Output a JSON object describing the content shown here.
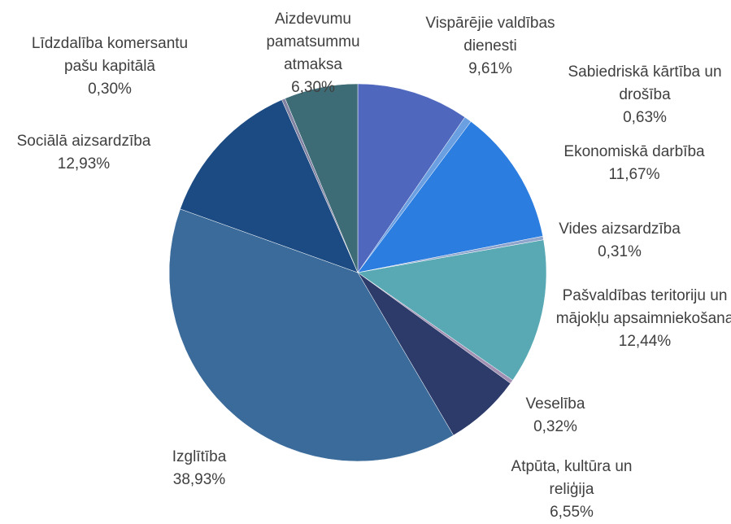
{
  "chart_data": {
    "type": "pie",
    "categories": [
      "Vispārējie valdības dienesti",
      "Sabiedriskā kārtība un drošība",
      "Ekonomiskā darbība",
      "Vides aizsardzība",
      "Pašvaldības teritoriju un mājokļu apsaimniekošana",
      "Veselība",
      "Atpūta, kultūra un reliģija",
      "Izglītība",
      "Sociālā aizsardzība",
      "Līdzdalība komersantu pašu kapitālā",
      "Aizdevumu pamatsummu atmaksa"
    ],
    "values": [
      9.61,
      0.63,
      11.67,
      0.31,
      12.44,
      0.32,
      6.55,
      38.93,
      12.93,
      0.3,
      6.3
    ],
    "value_labels": [
      "9,61%",
      "0,63%",
      "11,67%",
      "0,31%",
      "12,44%",
      "0,32%",
      "6,55%",
      "38,93%",
      "12,93%",
      "0,30%",
      "6,30%"
    ],
    "colors": [
      "#4f67bd",
      "#6a9fe2",
      "#2b7de0",
      "#8fa5cc",
      "#59a9b4",
      "#a291b3",
      "#2d3b6b",
      "#3b6b9b",
      "#1b4b82",
      "#8282a2",
      "#3e6c76"
    ]
  }
}
